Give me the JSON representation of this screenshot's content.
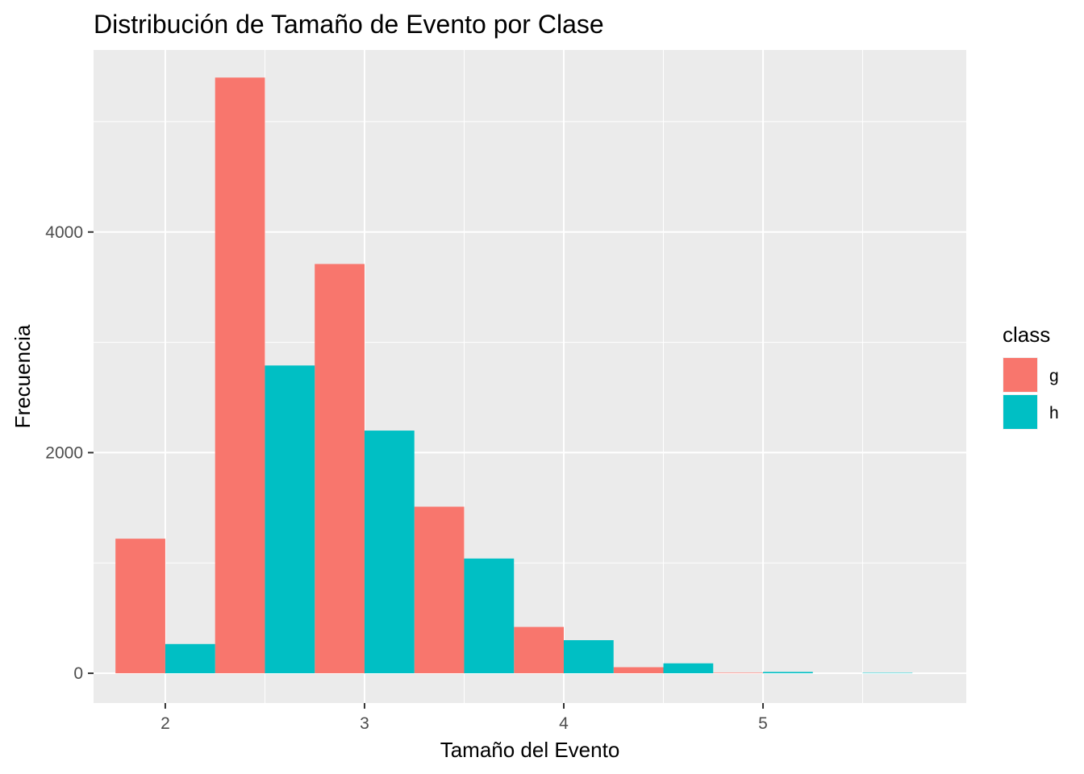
{
  "chart_data": {
    "type": "bar",
    "title": "Distribución de Tamaño de Evento por Clase",
    "xlabel": "Tamaño del Evento",
    "ylabel": "Frecuencia",
    "bin_width": 0.5,
    "xlim": [
      1.64,
      6.02
    ],
    "ylim": [
      -270,
      5650
    ],
    "x_ticks": [
      2,
      3,
      4,
      5
    ],
    "y_ticks": [
      0,
      2000,
      4000
    ],
    "grid": true,
    "legend": {
      "title": "class",
      "placement": "right"
    },
    "series": [
      {
        "name": "g",
        "color": "#F8766D",
        "bins": [
          {
            "x_start": 1.75,
            "x_end": 2.0,
            "value": 1220
          },
          {
            "x_start": 2.25,
            "x_end": 2.5,
            "value": 5400
          },
          {
            "x_start": 2.75,
            "x_end": 3.0,
            "value": 3710
          },
          {
            "x_start": 3.25,
            "x_end": 3.5,
            "value": 1510
          },
          {
            "x_start": 3.75,
            "x_end": 4.0,
            "value": 420
          },
          {
            "x_start": 4.25,
            "x_end": 4.5,
            "value": 55
          },
          {
            "x_start": 4.75,
            "x_end": 5.0,
            "value": 5
          },
          {
            "x_start": 5.25,
            "x_end": 5.5,
            "value": 0
          }
        ]
      },
      {
        "name": "h",
        "color": "#00BFC4",
        "bins": [
          {
            "x_start": 2.0,
            "x_end": 2.25,
            "value": 265
          },
          {
            "x_start": 2.5,
            "x_end": 2.75,
            "value": 2790
          },
          {
            "x_start": 3.0,
            "x_end": 3.25,
            "value": 2200
          },
          {
            "x_start": 3.5,
            "x_end": 3.75,
            "value": 1040
          },
          {
            "x_start": 4.0,
            "x_end": 4.25,
            "value": 300
          },
          {
            "x_start": 4.5,
            "x_end": 4.75,
            "value": 90
          },
          {
            "x_start": 5.0,
            "x_end": 5.25,
            "value": 12
          },
          {
            "x_start": 5.5,
            "x_end": 5.75,
            "value": 4
          }
        ]
      }
    ]
  }
}
